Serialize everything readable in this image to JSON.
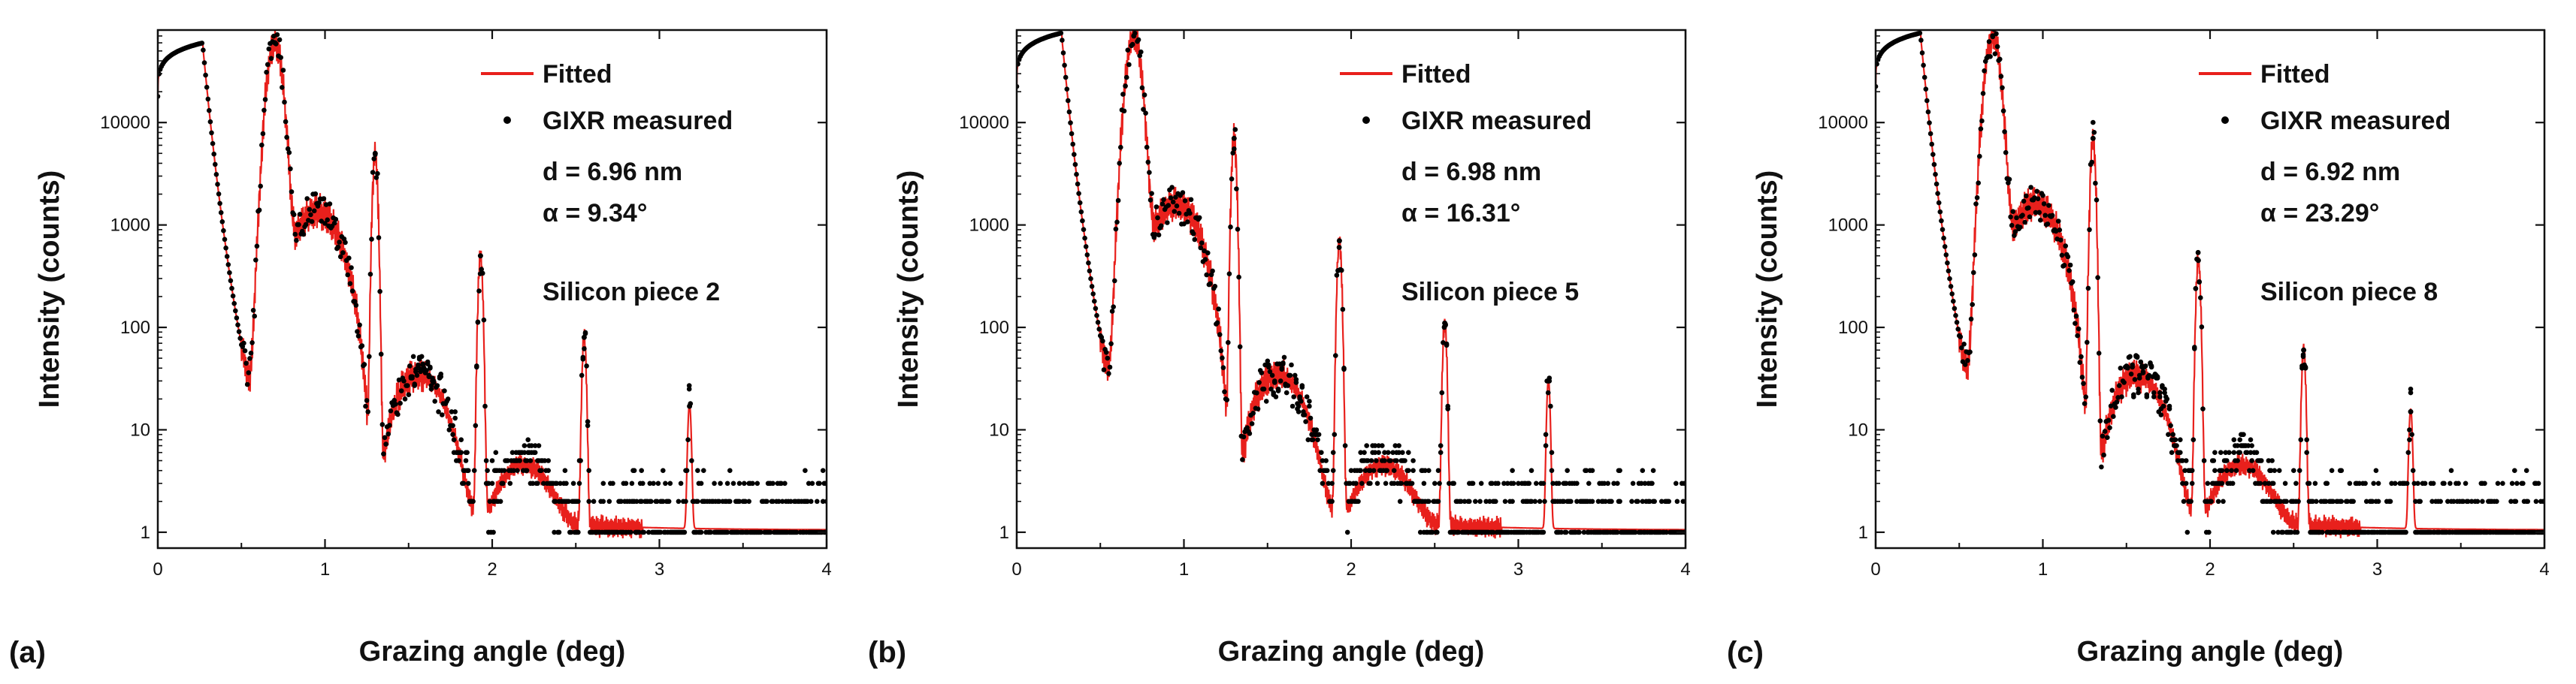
{
  "figure": {
    "panels": [
      {
        "letter": "(a)",
        "annotation_d": "d = 6.96 nm",
        "annotation_alpha": "α = 9.34°",
        "sample": "Silicon piece 2"
      },
      {
        "letter": "(b)",
        "annotation_d": "d = 6.98 nm",
        "annotation_alpha": "α = 16.31°",
        "sample": "Silicon piece 5"
      },
      {
        "letter": "(c)",
        "annotation_d": "d = 6.92 nm",
        "annotation_alpha": "α = 23.29°",
        "sample": "Silicon piece 8"
      }
    ],
    "colors": {
      "fitted": "#e8201c",
      "measured": "#000000",
      "axis": "#111111"
    }
  },
  "chart_data": [
    {
      "type": "line",
      "panel": "(a)",
      "title": "",
      "xlabel": "Grazing angle (deg)",
      "ylabel": "Intensity (counts)",
      "xlim": [
        0,
        4
      ],
      "ylim": [
        0.7,
        80000
      ],
      "yscale": "log",
      "x_ticks": [
        "0",
        "1",
        "2",
        "3",
        "4"
      ],
      "y_ticks": [
        "1",
        "10",
        "100",
        "1000",
        "10000"
      ],
      "legend": [
        "Fitted",
        "GIXR measured"
      ],
      "legend_position": "top-right",
      "annotations": [
        "d = 6.96 nm",
        "α = 9.34°",
        "Silicon piece 2"
      ],
      "series": [
        {
          "name": "Fitted",
          "style": "line"
        },
        {
          "name": "GIXR measured",
          "style": "markers"
        }
      ],
      "peaks": [
        {
          "x": 0.7,
          "y": 60000
        },
        {
          "x": 1.3,
          "y": 5000
        },
        {
          "x": 1.93,
          "y": 500
        },
        {
          "x": 2.55,
          "y": 80
        },
        {
          "x": 3.18,
          "y": 17
        }
      ],
      "critical_angle": 0.27,
      "plateau": 60000
    },
    {
      "type": "line",
      "panel": "(b)",
      "title": "",
      "xlabel": "Grazing angle (deg)",
      "ylabel": "Intensity (counts)",
      "xlim": [
        0,
        4
      ],
      "ylim": [
        0.7,
        80000
      ],
      "yscale": "log",
      "x_ticks": [
        "0",
        "1",
        "2",
        "3",
        "4"
      ],
      "y_ticks": [
        "1",
        "10",
        "100",
        "1000",
        "10000"
      ],
      "legend": [
        "Fitted",
        "GIXR measured"
      ],
      "legend_position": "top-right",
      "annotations": [
        "d = 6.98 nm",
        "α = 16.31°",
        "Silicon piece 5"
      ],
      "series": [
        {
          "name": "Fitted",
          "style": "line"
        },
        {
          "name": "GIXR measured",
          "style": "markers"
        }
      ],
      "peaks": [
        {
          "x": 0.7,
          "y": 70000
        },
        {
          "x": 1.3,
          "y": 7000
        },
        {
          "x": 1.93,
          "y": 700
        },
        {
          "x": 2.56,
          "y": 110
        },
        {
          "x": 3.18,
          "y": 30
        }
      ],
      "critical_angle": 0.27,
      "plateau": 75000
    },
    {
      "type": "line",
      "panel": "(c)",
      "title": "",
      "xlabel": "Grazing angle (deg)",
      "ylabel": "Intensity (counts)",
      "xlim": [
        0,
        4
      ],
      "ylim": [
        0.7,
        80000
      ],
      "yscale": "log",
      "x_ticks": [
        "0",
        "1",
        "2",
        "3",
        "4"
      ],
      "y_ticks": [
        "1",
        "10",
        "100",
        "1000",
        "10000"
      ],
      "legend": [
        "Fitted",
        "GIXR measured"
      ],
      "legend_position": "top-right",
      "annotations": [
        "d = 6.92 nm",
        "α = 23.29°",
        "Silicon piece 8"
      ],
      "series": [
        {
          "name": "Fitted",
          "style": "line"
        },
        {
          "name": "GIXR measured",
          "style": "markers"
        }
      ],
      "peaks": [
        {
          "x": 0.7,
          "y": 70000
        },
        {
          "x": 1.3,
          "y": 7000
        },
        {
          "x": 1.93,
          "y": 450
        },
        {
          "x": 2.56,
          "y": 60
        },
        {
          "x": 3.2,
          "y": 15
        }
      ],
      "critical_angle": 0.27,
      "plateau": 75000
    }
  ]
}
